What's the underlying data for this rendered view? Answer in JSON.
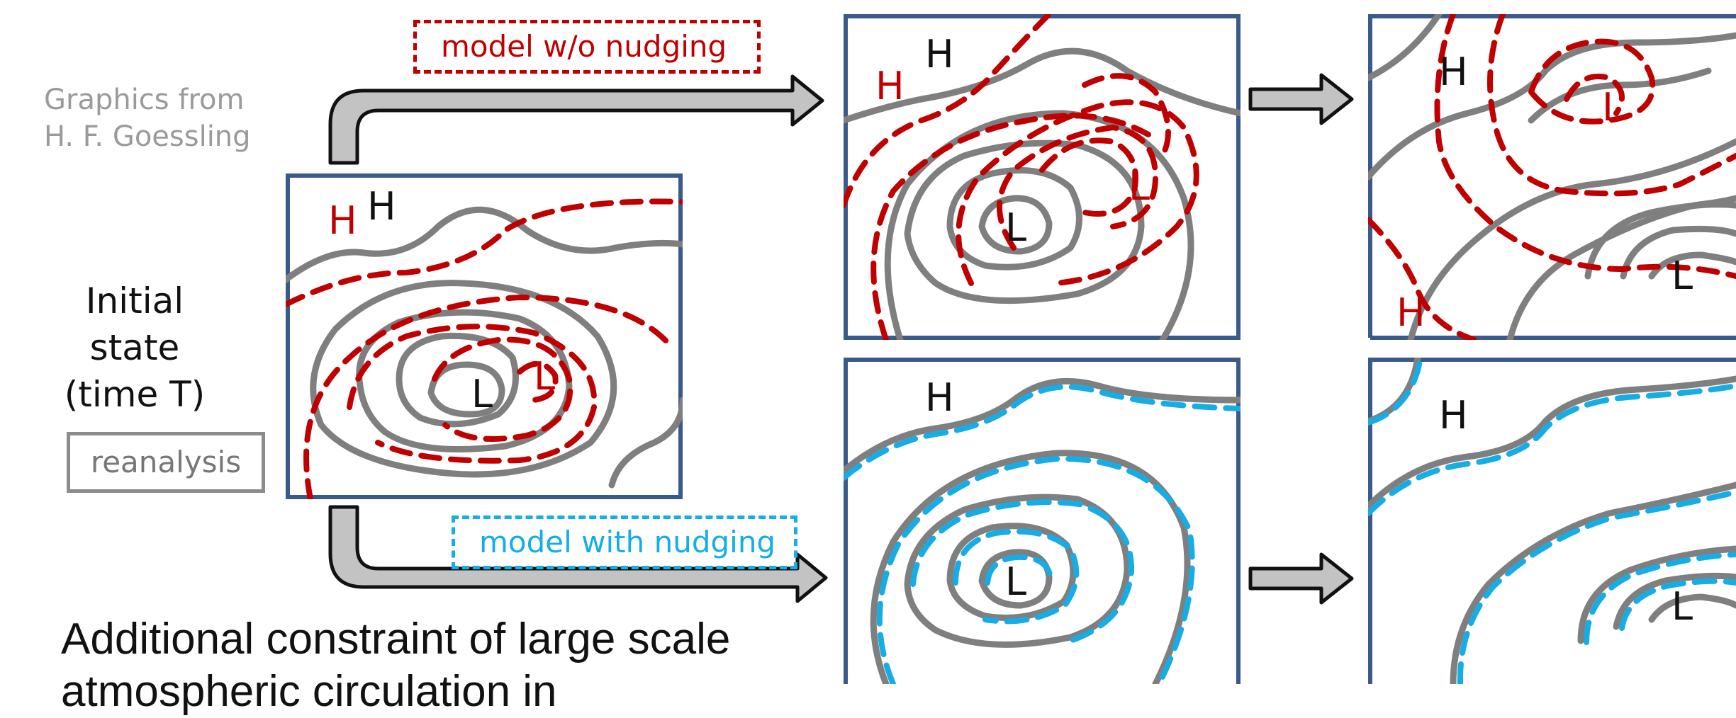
{
  "credit": {
    "line1": "Graphics from",
    "line2": "H. F. Goessling"
  },
  "initial_state": {
    "line1": "Initial state",
    "line2": "(time T)"
  },
  "legend": {
    "reanalysis": "reanalysis"
  },
  "tags": {
    "without_nudging": "model w/o nudging",
    "with_nudging": "model with nudging"
  },
  "caption": {
    "line1": "Additional constraint of large scale",
    "line2": "atmospheric circulation in"
  },
  "pressure_labels": {
    "high": "H",
    "low": "L"
  },
  "colors": {
    "reanalysis_line": "#7f7f7f",
    "model_without_nudging": "#c00000",
    "model_with_nudging": "#18ace4",
    "panel_border": "#3b5a8c",
    "arrow_fill": "#c3c3c3"
  },
  "icons": {
    "flow_arrow": "right-arrow-icon"
  }
}
